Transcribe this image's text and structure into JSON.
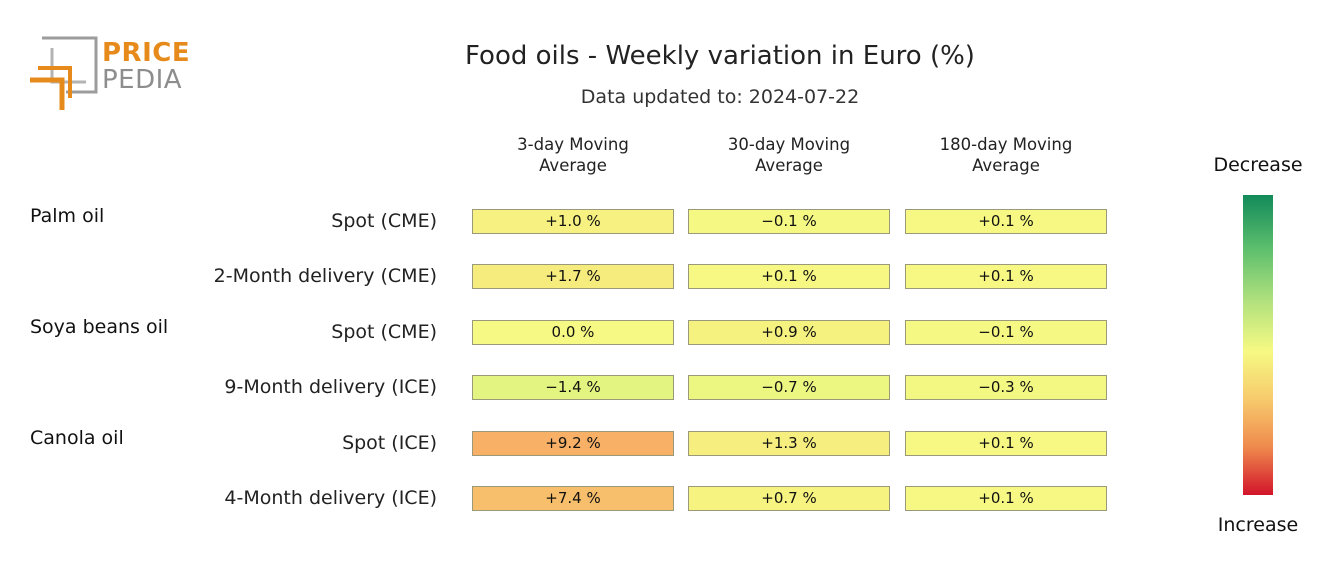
{
  "logo": {
    "line1": "PRICE",
    "line2": "PEDIA"
  },
  "chart_data": {
    "type": "table",
    "title": "Food oils - Weekly variation in Euro (%)",
    "subtitle": "Data updated to: 2024-07-22",
    "columns": [
      "3-day Moving Average",
      "30-day Moving Average",
      "180-day Moving Average"
    ],
    "column_lines": [
      [
        "3-day Moving",
        "Average"
      ],
      [
        "30-day Moving",
        "Average"
      ],
      [
        "180-day Moving",
        "Average"
      ]
    ],
    "groups": [
      "Palm oil",
      "Soya beans oil",
      "Canola oil"
    ],
    "rows": [
      {
        "group": "Palm oil",
        "label": "Spot (CME)",
        "values": [
          1.0,
          -0.1,
          0.1
        ],
        "text": [
          "+1.0 %",
          "−0.1 %",
          "+0.1 %"
        ]
      },
      {
        "group": "Palm oil",
        "label": "2-Month delivery (CME)",
        "values": [
          1.7,
          0.1,
          0.1
        ],
        "text": [
          "+1.7 %",
          "+0.1 %",
          "+0.1 %"
        ]
      },
      {
        "group": "Soya beans oil",
        "label": "Spot (CME)",
        "values": [
          0.0,
          0.9,
          -0.1
        ],
        "text": [
          "0.0 %",
          "+0.9 %",
          "−0.1 %"
        ]
      },
      {
        "group": "Soya beans oil",
        "label": "9-Month delivery (ICE)",
        "values": [
          -1.4,
          -0.7,
          -0.3
        ],
        "text": [
          "−1.4 %",
          "−0.7 %",
          "−0.3 %"
        ]
      },
      {
        "group": "Canola oil",
        "label": "Spot (ICE)",
        "values": [
          9.2,
          1.3,
          0.1
        ],
        "text": [
          "+9.2 %",
          "+1.3 %",
          "+0.1 %"
        ]
      },
      {
        "group": "Canola oil",
        "label": "4-Month delivery (ICE)",
        "values": [
          7.4,
          0.7,
          0.1
        ],
        "text": [
          "+7.4 %",
          "+0.7 %",
          "+0.1 %"
        ]
      }
    ],
    "legend": {
      "top": "Decrease",
      "bottom": "Increase"
    },
    "colors": {
      "decrease": "#128a5a",
      "neutral": "#f6f983",
      "increase": "#d2142b"
    }
  }
}
